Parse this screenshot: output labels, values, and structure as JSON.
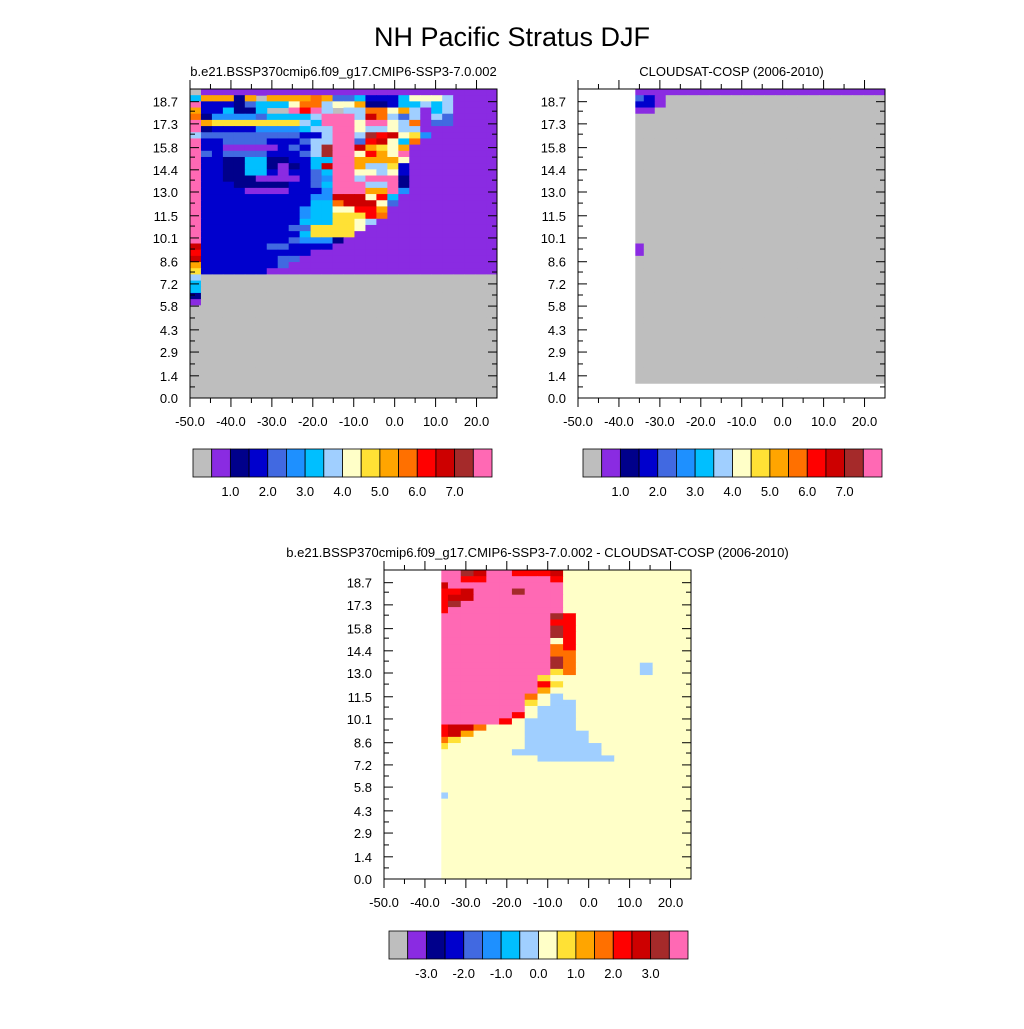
{
  "page": {
    "title": "NH Pacific Stratus DJF"
  },
  "palette": [
    "#bebebe",
    "#8a2be2",
    "#00008b",
    "#0000cd",
    "#4169e1",
    "#1e90ff",
    "#00bfff",
    "#a0cfff",
    "#ffffc8",
    "#ffe135",
    "#ffa500",
    "#ff7000",
    "#ff0000",
    "#cd0000",
    "#a52a2a",
    "#ff69b4"
  ],
  "chart_data": [
    {
      "type": "heatmap",
      "title": "b.e21.BSSP370cmip6.f09_g17.CMIP6-SSP3-7.0.002",
      "x_ticks": [
        "-50.0",
        "-40.0",
        "-30.0",
        "-20.0",
        "-10.0",
        "0.0",
        "10.0",
        "20.0"
      ],
      "y_ticks": [
        "0.0",
        "1.4",
        "2.9",
        "4.3",
        "5.8",
        "7.2",
        "8.6",
        "10.1",
        "11.5",
        "13.0",
        "14.4",
        "15.8",
        "17.3",
        "18.7"
      ],
      "xlim": [
        -50,
        25
      ],
      "ylim": [
        0,
        19.5
      ],
      "colorbar_labels": [
        "1.0",
        "2.0",
        "3.0",
        "4.0",
        "5.0",
        "6.0",
        "7.0"
      ],
      "grid_rows": [
        "ABBBBBBBBBBBBBBBBBBBBBBBBBBB",
        "GKKKCKQKKKKLKEEGDDDGIIIHBBBB",
        "PDDDCEGGGILLHIIKCCDGGHGHBBBB",
        "KDDGCCGQQPMPHQHHLLIKHBGHBBBB",
        "LCFFFFEGGGGHPPPHNLHEHBHEBBBB",
        "PKJJJJJJJJHGPPPIPPIHLBEEBBBB",
        "PCDDDDFFFFGHHPPIHHIHHBBBBBBB",
        "HEEEEEEEEEDDHPPHOMNIJFBBBBBB",
        "PDDEEEEDDDEHHPPEMNIGLBBBBBBB",
        "PDDBBBBBDEDHOPPNKJIKBBBBBBBB",
        "PEDEEEEDDDEHOPPIMKIPBBBBBBBB",
        "PDDCCGGCCDDGGPPKKKKIBBBBBBBB",
        "PDDCCGGCBCDGNPPKHHJDBBBBBBBB",
        "PDDCCGGDBDDEGPPIIHIDBBBBBBBB",
        "PDDCCCBBBBDEFPPHPPPCBBBBBBBB",
        "PDDDCCCCCDDEGPPPHHPCBBBBBBBB",
        "PDDDDBBBBDDDFPPPKKPFBBBBBBBB",
        "PDDDDDDDDDDFFNNNIMGBBBBBBBBB",
        "PDDDDDDDDDDGGLNNNIEBBBBBBBBB",
        "PDDDDDDDDDFGGIIMMKBBBBBBBBBB",
        "PDDDDDDDDDFGGJJJMLBBBBBBBBBB",
        "PDDDDDDDDDGGGJJIHBBBBBBBBBBB",
        "PDDDDDDDDEEJJJJIBBBBBBBBBBBB",
        "PDDDDDDDDDGJJJJBBBBBBBBBBBBB",
        "PDDDDDDDDEFFFCBBBBBBBBBBBBBB",
        "NDDDDDDEEDDDDBBBBBBBBBBBBBBB",
        "MDDDDDDDDDDBBBBBBBBBBBBBBBBB",
        "NDDDDDDDEEBBBBBBBBBBBBBBBBBB",
        "KDDDDDDDEBBBBBBBBBBBBBBBBBBB",
        "JDDDDDDBBBBBBBBBBBBBBBBBBBBB",
        "HAAAAAAAAAAAAAAAAAAAAAAAAAAA",
        "GAAAAAAAAAAAAAAAAAAAAAAAAAAA",
        "GAAAAAAAAAAAAAAAAAAAAAAAAAAA",
        "CAAAAAAAAAAAAAAAAAAAAAAAAAAA",
        "BAAAAAAAAAAAAAAAAAAAAAAAAAAA",
        "AAAAAAAAAAAAAAAAAAAAAAAAAAAA",
        "AAAAAAAAAAAAAAAAAAAAAAAAAAAA",
        "AAAAAAAAAAAAAAAAAAAAAAAAAAAA",
        "AAAAAAAAAAAAAAAAAAAAAAAAAAAA",
        "AAAAAAAAAAAAAAAAAAAAAAAAAAAA",
        "AAAAAAAAAAAAAAAAAAAAAAAAAAAA",
        "AAAAAAAAAAAAAAAAAAAAAAAAAAAA",
        "AAAAAAAAAAAAAAAAAAAAAAAAAAAA",
        "AAAAAAAAAAAAAAAAAAAAAAAAAAAA",
        "AAAAAAAAAAAAAAAAAAAAAAAAAAAA",
        "AAAAAAAAAAAAAAAAAAAAAAAAAAAA",
        "AAAAAAAAAAAAAAAAAAAAAAAAAAAA",
        "AAAAAAAAAAAAAAAAAAAAAAAAAAAA",
        "AAAAAAAAAAAAAAAAAAAAAAAAAAAA",
        "AAAAAAAAAAAAAAAAAAAAAAAAAAAA"
      ]
    },
    {
      "type": "heatmap",
      "title": "CLOUDSAT-COSP (2006-2010)",
      "x_ticks": [
        "-50.0",
        "-40.0",
        "-30.0",
        "-20.0",
        "-10.0",
        "0.0",
        "10.0",
        "20.0"
      ],
      "y_ticks": [
        "0.0",
        "1.4",
        "2.9",
        "4.3",
        "5.8",
        "7.2",
        "8.6",
        "10.1",
        "11.5",
        "13.0",
        "14.4",
        "15.8",
        "17.3",
        "18.7"
      ],
      "xlim": [
        -50,
        25
      ],
      "ylim": [
        0,
        19.5
      ],
      "colorbar_labels": [
        "1.0",
        "2.0",
        "3.0",
        "4.0",
        "5.0",
        "6.0",
        "7.0"
      ],
      "missing_x_max": -36,
      "missing_y_max": 0.9,
      "grid_rows": [
        "ABBBBBBBBBBBBBBBBBBBBBBBBBBB",
        "KMJHFEDBAAAAAAAAAAAAAAAAAAAA",
        "HEDBEDDBAAAAAAAAAAAAAAAAAAAA",
        "DDBBBBBAAAAAAAAAAAAAAAAAAAAA",
        "AAAAAAAAAAAAAAAAAAAAAAAAAAAA",
        "AAAAAAAAAAAAAAAAAAAAAAAAAAAA",
        "AAAAAAAAAAAAAAAAAAAAAAAAAAAA",
        "AAAAAAAAAAAAAAAAAAAAAAAAAAAA",
        "AAAAAAAAAAAAAAAAAAAAAAAAAAAA",
        "AAAAAAAAAAAAAAAAAAAAAAAAAAAA",
        "AAAAAAAAAAAAAAAAAAAAAAAAAAAA",
        "AAAAAAAAAAAAAAAAAAAAAAAAAAAA",
        "AAAAAAAAAAAAAAAAAAAAAAAAAAAA",
        "AAAAAAAAAAAAAAAAAAAAAAAAAAAA",
        "AAAAAAAAAAAAAAAAAAAAAAAAAAAA",
        "AAAAAAAAAAAAAAAAAAAAAAAAAAAA",
        "AAAAAAAAAAAAAAAAAAAAAAAAAAAA",
        "AAAAAAAAAAAAAAAAAAAAAAAAAAAA",
        "AAAAAAAAAAAAAAAAAAAAAAAAAAAA",
        "AAAAAAAAAAAAAAAAAAAAAAAAAAAA",
        "AAAAAAAAAAAAAAAAAAAAAAAAAAAA",
        "AAAAAAAAAAAAAAAAAAAAAAAAAAAA",
        "BAAAAAAAAAAAAAAAAAAAAAAAAAAA",
        "BBBBAAAAAAAAAAAAAAAAAAAAAAAA",
        "BBBBBAAAAAAAAAAAAAAAAAAAAAAA",
        "BBBBBBAAAAAAAAAAAAAAAAAAAAAA",
        "BBBBBBAAAAAAAAAAAAAAAAAAAAAA",
        "BBBBBAAAAAAAAAAAAAAAAAAAAAAA",
        "CCCCBAAAAAAAAAAAAAAAAAAAAAAA",
        "CCCCBAAAAAAAAAAAAAAAAAAAAAAA",
        "CCCBBAAAAAAAAAAAAAAAAAAAAAAA",
        "CCBBAAAAAAAAAAAAAAAAAAAAAAAA",
        "BBAAAAAAAAAAAAAAAAAAAAAAAAAA",
        "AAAAAAAAAAAAAAAAAAAAAAAAAAAA",
        "AAAAAAAAAAAAAAAAAAAAAAAAAAAA",
        "AAAAAAAAAAAAAAAAAAAAAAAAAAAA",
        "AAAAAAAAAAAAAAAAAAAAAAAAAAAA",
        "AAAAAAAAAAAAAAAAAAAAAAAAAAAA",
        "AAAAAAAAAAAAAAAAAAAAAAAAAAAA",
        "AAAAAAAAAAAAAAAAAAAAAAAAAAAA",
        "AAAAAAAAAAAAAAAAAAAAAAAAAAAA",
        "AAAAAAAAAAAAAAAAAAAAAAAAAAAA",
        "AAAAAAAAAAAAAAAAAAAAAAAAAAAA",
        "AAAAAAAAAAAAAAAAAAAAAAAAAAAA",
        "AAAAAAAAAAAAAAAAAAAAAAAAAAAA",
        "AAAAAAAAAAAAAAAAAAAAAAAAAAAA",
        "AAAAAAAAAAAAAAAAAAAAAAAAAAAA",
        "AAAAAAAAAAAAAAAAAAAAAAAAAAAA",
        "AAAAAAAAAAAAAAAAAAAAAAAAAAAA",
        "AAAAAAAAAAAAAAAAAAAAAAAAAAAA"
      ]
    },
    {
      "type": "heatmap",
      "title": "b.e21.BSSP370cmip6.f09_g17.CMIP6-SSP3-7.0.002 - CLOUDSAT-COSP (2006-2010)",
      "x_ticks": [
        "-50.0",
        "-40.0",
        "-30.0",
        "-20.0",
        "-10.0",
        "0.0",
        "10.0",
        "20.0"
      ],
      "y_ticks": [
        "0.0",
        "1.4",
        "2.9",
        "4.3",
        "5.8",
        "7.2",
        "8.6",
        "10.1",
        "11.5",
        "13.0",
        "14.4",
        "15.8",
        "17.3",
        "18.7"
      ],
      "xlim": [
        -50,
        25
      ],
      "ylim": [
        0,
        19.5
      ],
      "colorbar_labels": [
        "-3.0",
        "-2.0",
        "-1.0",
        "0.0",
        "1.0",
        "2.0",
        "3.0"
      ],
      "missing_x_max": -36,
      "missing_y_max": 0.9,
      "grid_rows": [
        "MPPPPPONPPMMMNIIIIIIIIII",
        "MMPPPPMMPPPPPMIIIIIIIIII",
        "NMMMNPPPPPPPPPIIIIIIIIII",
        "NNMMMMNPPPOPPPIIIIIIIIII",
        "MMMMMNNPPPPPPPIIIIIIIIII",
        "MMLMMOPPPPPPPPIIIIIIIIII",
        "KKKMMPPPPPPPPPIIIIIIIIII",
        "KKKKPPPPPPPPPOMIIIIIIIII",
        "IKKLPPPPPPPPPMMIIIIIIIII",
        "IIIIPPPPPPPPPOMIIIIIIIII",
        "IHIKPPPPPPPPPOMIIIIIIIII",
        "IHHKPPPPPPPPPIMIIIIIIIII",
        "IHHJPPPPPPPPPLMIIIIIIIII",
        "IHHJPPPPPPPPPLLIIIIIIIII",
        "IHHLPPPPPPPPPOLIIIIIIIII",
        "HHHLPPPPPPPPPOLIIIIIHIII",
        "IIIKPPPPPPPPPJLIIIIIHIII",
        "HHHLPPPPPPPPJIIIIIIIIIII",
        "IIIKPPPPPPPPMJIIIIIIIIII",
        "IIIKPPPPPPPPKIIIIIIIIIII",
        "JIIKPPPPPPPLIHIIIIIIIIII",
        "JJIKPPPPPPPJIHHIIIIIIIII",
        "JJHIPPPPPPPIHHHIIIIIIIII",
        "JJJMPPPPPPMIHHHIIIIIIIII",
        "KKLNPPPPPMIHHHHIIIIIIIII",
        "MMMMMNNLIIIHHHHIIIIIIIII",
        "MMMMMNKIIIIHHHHHIIIIIIII",
        "KKKLLJIIIIIHHHHHIIIIIIII",
        "LLLLJIIIIIIHHHHHHIIIIIII",
        "JJIIIIIIIIHHHHHHHIIIIIII",
        "IIIIIIIIIIIIHHHHHHIIIIII",
        "IIIIIIIIIIIIIIIIIIIIIIII",
        "IIIIIIIIIIIIIIIIIIIIIIII",
        "IIIIIIIIIIIIIIIIIIIIIIII",
        "IIIIIIIIIIIIIIIIIIIIIIII",
        "IIIIIIIIIIIIIIIIIIIIIIII",
        "IHHHHIIIIIIIIIIIIIIIIIII",
        "IIIIIIIIIIIIIIIIIIIIIIII",
        "IIIIIIIIIIIIIIIIIIIIIIII",
        "IIIIIIIIIIIIIIIIIIIIIIII",
        "IIIIIIIIIIIIIIIIIIIIIIII",
        "IIIIIIIIIIIIIIIIIIIIIIII",
        "IIIIIIIIIIIIIIIIIIIIIIII",
        "IIIIIIIIIIIIIIIIIIIIIIII",
        "IIIIIIIIIIIIIIIIIIIIIIII",
        "IIIIIIIIIIIIIIIIIIIIIIII",
        "IIIIIIIIIIIIIIIIIIIIIIII",
        "IIIIIIIIIIIIIIIIIIIIIIII",
        "IIIIIIIIIIIIIIIIIIIIIIII",
        "IIIIIIIIIIIIIIIIIIIIIIII"
      ]
    }
  ]
}
